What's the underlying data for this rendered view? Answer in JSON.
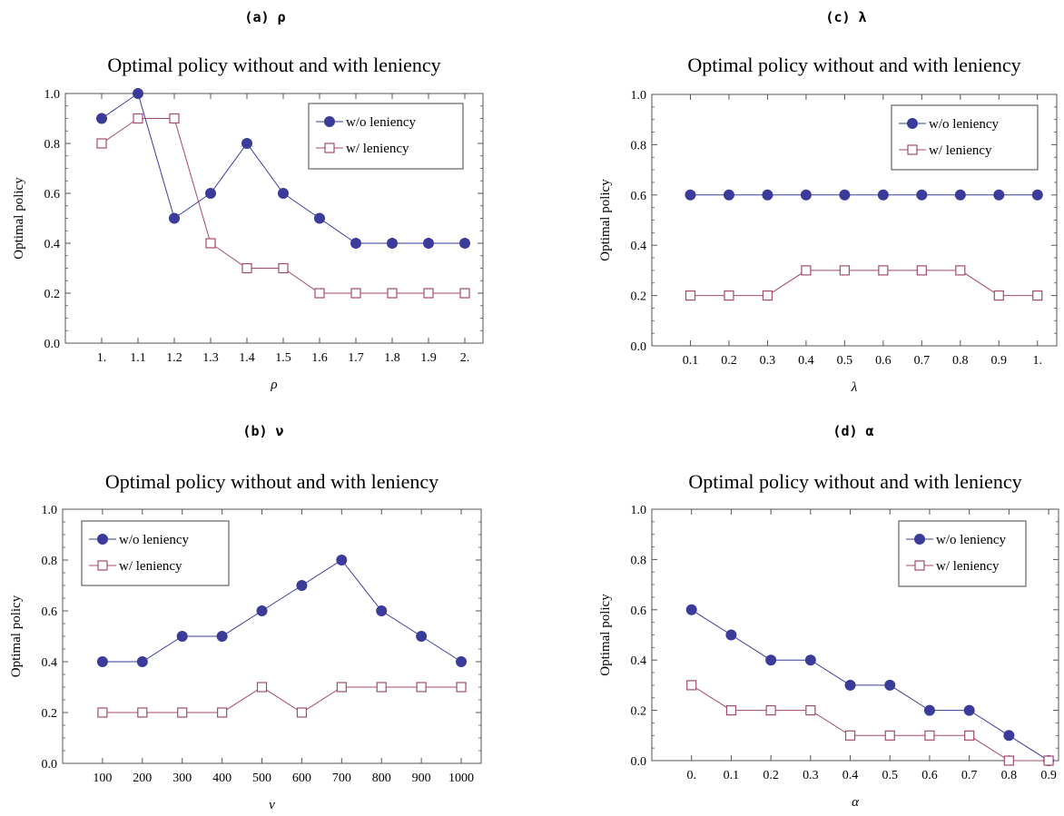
{
  "colors": {
    "wo_leniency": "#3b3b9a",
    "w_leniency": "#a3496f",
    "axis": "#555555"
  },
  "icons": {
    "wo_leniency_marker": "filled-circle",
    "w_leniency_marker": "open-square"
  },
  "chart_data": [
    {
      "type": "line",
      "panel_label": "(a) ρ",
      "title": "Optimal policy without and with leniency",
      "xlabel": "ρ",
      "ylabel": "Optimal policy",
      "x": [
        1.0,
        1.1,
        1.2,
        1.3,
        1.4,
        1.5,
        1.6,
        1.7,
        1.8,
        1.9,
        2.0
      ],
      "x_tick_labels": [
        "1.",
        "1.1",
        "1.2",
        "1.3",
        "1.4",
        "1.5",
        "1.6",
        "1.7",
        "1.8",
        "1.9",
        "2."
      ],
      "xlim": [
        0.9,
        2.05
      ],
      "ylim": [
        0,
        1
      ],
      "y_ticks": [
        0.0,
        0.2,
        0.4,
        0.6,
        0.8,
        1.0
      ],
      "y_tick_labels": [
        "0.0",
        "0.2",
        "0.4",
        "0.6",
        "0.8",
        "1.0"
      ],
      "legend_position": "top-right",
      "series": [
        {
          "name": "w/o leniency",
          "marker": "filled-circle",
          "values": [
            0.9,
            1.0,
            0.5,
            0.6,
            0.8,
            0.6,
            0.5,
            0.4,
            0.4,
            0.4,
            0.4
          ]
        },
        {
          "name": "w/ leniency",
          "marker": "open-square",
          "values": [
            0.8,
            0.9,
            0.9,
            0.4,
            0.3,
            0.3,
            0.2,
            0.2,
            0.2,
            0.2,
            0.2
          ]
        }
      ]
    },
    {
      "type": "line",
      "panel_label": "(c) λ",
      "title": "Optimal policy without and with leniency",
      "xlabel": "λ",
      "ylabel": "Optimal policy",
      "x": [
        0.1,
        0.2,
        0.3,
        0.4,
        0.5,
        0.6,
        0.7,
        0.8,
        0.9,
        1.0
      ],
      "x_tick_labels": [
        "0.1",
        "0.2",
        "0.3",
        "0.4",
        "0.5",
        "0.6",
        "0.7",
        "0.8",
        "0.9",
        "1."
      ],
      "xlim": [
        0.0,
        1.05
      ],
      "ylim": [
        0,
        1
      ],
      "y_ticks": [
        0.0,
        0.2,
        0.4,
        0.6,
        0.8,
        1.0
      ],
      "y_tick_labels": [
        "0.0",
        "0.2",
        "0.4",
        "0.6",
        "0.8",
        "1.0"
      ],
      "legend_position": "top-right",
      "series": [
        {
          "name": "w/o leniency",
          "marker": "filled-circle",
          "values": [
            0.6,
            0.6,
            0.6,
            0.6,
            0.6,
            0.6,
            0.6,
            0.6,
            0.6,
            0.6
          ]
        },
        {
          "name": "w/ leniency",
          "marker": "open-square",
          "values": [
            0.2,
            0.2,
            0.2,
            0.3,
            0.3,
            0.3,
            0.3,
            0.3,
            0.2,
            0.2
          ]
        }
      ]
    },
    {
      "type": "line",
      "panel_label": "(b) ν",
      "title": "Optimal policy without and with leniency",
      "xlabel": "ν",
      "ylabel": "Optimal policy",
      "x": [
        100,
        200,
        300,
        400,
        500,
        600,
        700,
        800,
        900,
        1000
      ],
      "x_tick_labels": [
        "100",
        "200",
        "300",
        "400",
        "500",
        "600",
        "700",
        "800",
        "900",
        "1000"
      ],
      "xlim": [
        0,
        1050
      ],
      "ylim": [
        0,
        1
      ],
      "y_ticks": [
        0.0,
        0.2,
        0.4,
        0.6,
        0.8,
        1.0
      ],
      "y_tick_labels": [
        "0.0",
        "0.2",
        "0.4",
        "0.6",
        "0.8",
        "1.0"
      ],
      "legend_position": "top-left",
      "series": [
        {
          "name": "w/o leniency",
          "marker": "filled-circle",
          "values": [
            0.4,
            0.4,
            0.5,
            0.5,
            0.6,
            0.7,
            0.8,
            0.6,
            0.5,
            0.4
          ]
        },
        {
          "name": "w/ leniency",
          "marker": "open-square",
          "values": [
            0.2,
            0.2,
            0.2,
            0.2,
            0.3,
            0.2,
            0.3,
            0.3,
            0.3,
            0.3
          ]
        }
      ]
    },
    {
      "type": "line",
      "panel_label": "(d) α",
      "title": "Optimal policy without and with leniency",
      "xlabel": "α",
      "ylabel": "Optimal policy",
      "x": [
        0.0,
        0.1,
        0.2,
        0.3,
        0.4,
        0.5,
        0.6,
        0.7,
        0.8,
        0.9
      ],
      "x_tick_labels": [
        "0.",
        "0.1",
        "0.2",
        "0.3",
        "0.4",
        "0.5",
        "0.6",
        "0.7",
        "0.8",
        "0.9"
      ],
      "xlim": [
        -0.1,
        0.925
      ],
      "ylim": [
        0,
        1
      ],
      "y_ticks": [
        0.0,
        0.2,
        0.4,
        0.6,
        0.8,
        1.0
      ],
      "y_tick_labels": [
        "0.0",
        "0.2",
        "0.4",
        "0.6",
        "0.8",
        "1.0"
      ],
      "legend_position": "top-right",
      "series": [
        {
          "name": "w/o leniency",
          "marker": "filled-circle",
          "values": [
            0.6,
            0.5,
            0.4,
            0.4,
            0.3,
            0.3,
            0.2,
            0.2,
            0.1,
            0.0
          ]
        },
        {
          "name": "w/ leniency",
          "marker": "open-square",
          "values": [
            0.3,
            0.2,
            0.2,
            0.2,
            0.1,
            0.1,
            0.1,
            0.1,
            0.0,
            0.0
          ]
        }
      ]
    }
  ]
}
